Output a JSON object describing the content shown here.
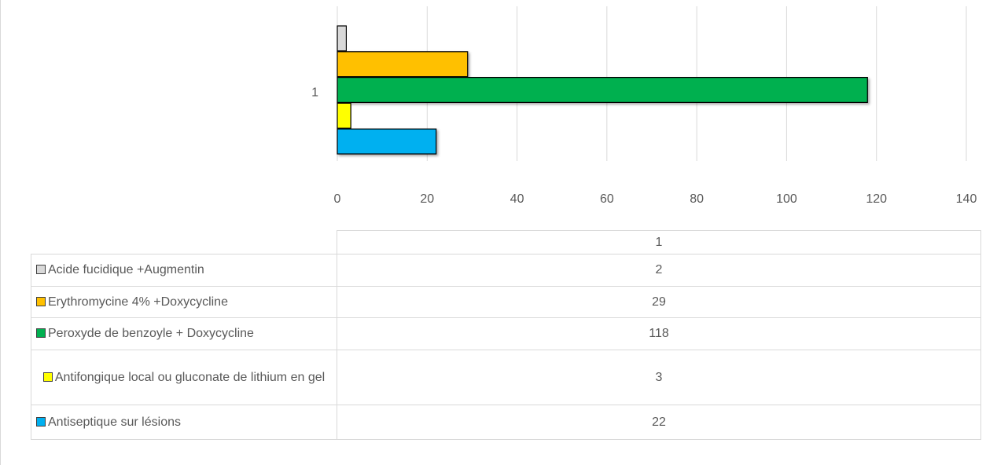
{
  "chart_data": {
    "type": "bar",
    "orientation": "horizontal",
    "categories": [
      "1"
    ],
    "series": [
      {
        "name": "Acide fucidique +Augmentin",
        "color": "#d9d9d9",
        "values": [
          2
        ]
      },
      {
        "name": "Erythromycine 4% +Doxycycline",
        "color": "#ffc000",
        "values": [
          29
        ]
      },
      {
        "name": "Peroxyde de benzoyle + Doxycycline",
        "color": "#00b050",
        "values": [
          118
        ]
      },
      {
        "name": "Antifongique local ou gluconate de lithium en gel",
        "color": "#ffff00",
        "values": [
          3
        ]
      },
      {
        "name": "Antiseptique sur lésions",
        "color": "#00b0f0",
        "values": [
          22
        ]
      }
    ],
    "xlim": [
      0,
      140
    ],
    "xticks": [
      0,
      20,
      40,
      60,
      80,
      100,
      120,
      140
    ],
    "grid": true,
    "data_table": true
  }
}
